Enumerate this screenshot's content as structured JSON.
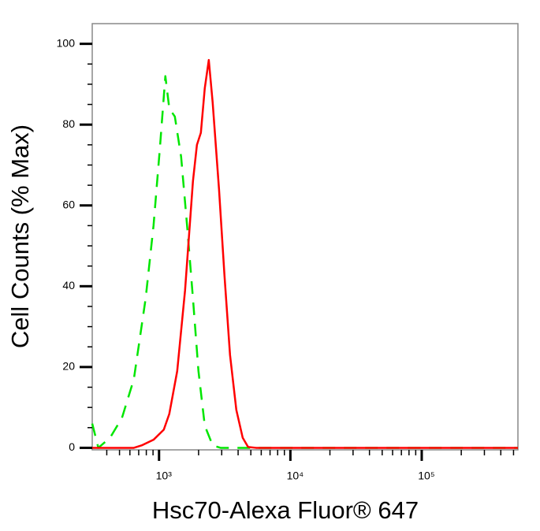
{
  "chart_data": {
    "type": "line",
    "x_label": "Hsc70-Alexa Fluor® 647",
    "y_label": "Cell Counts (% Max)",
    "xscale": "log",
    "xlim": [
      310,
      540000
    ],
    "ylim": [
      -0.5,
      105
    ],
    "xticks": [
      {
        "value": 1000,
        "label": "10³"
      },
      {
        "value": 10000,
        "label": "10⁴"
      },
      {
        "value": 100000,
        "label": "10⁵"
      }
    ],
    "xminorticks": [
      400,
      500,
      600,
      700,
      800,
      900,
      2000,
      3000,
      4000,
      5000,
      6000,
      7000,
      8000,
      9000,
      20000,
      30000,
      40000,
      50000,
      60000,
      70000,
      80000,
      90000,
      200000,
      300000,
      400000,
      500000
    ],
    "yticks": [
      0,
      20,
      40,
      60,
      80,
      100
    ],
    "yminorticks": [
      5,
      10,
      15,
      25,
      30,
      35,
      45,
      50,
      55,
      65,
      70,
      75,
      85,
      90,
      95
    ],
    "series": [
      {
        "color": "#00e600",
        "dash": true,
        "x": [
          310,
          345,
          424,
          522,
          643,
          791,
          908,
          1014,
          1117,
          1197,
          1319,
          1473,
          1645,
          1812,
          1996,
          2229,
          2560,
          2940,
          10000,
          100000,
          540000
        ],
        "values": [
          6,
          0,
          2.5,
          7.4,
          17,
          37,
          55,
          74,
          92,
          84,
          82,
          72,
          54,
          37,
          19,
          5.5,
          0.6,
          0,
          0,
          0,
          0
        ]
      },
      {
        "color": "#ff0000",
        "dash": false,
        "x": [
          310,
          643,
          737,
          908,
          1087,
          1197,
          1375,
          1578,
          1812,
          1943,
          2082,
          2229,
          2392,
          2560,
          2862,
          3150,
          3471,
          3876,
          4334,
          4766,
          5475,
          100000,
          540000
        ],
        "values": [
          0,
          0,
          0.6,
          2,
          4.5,
          8.4,
          19,
          39,
          66,
          75,
          78,
          89,
          96,
          85.5,
          64,
          42.6,
          23,
          9.4,
          2.5,
          0.2,
          0,
          0,
          0
        ]
      }
    ]
  }
}
